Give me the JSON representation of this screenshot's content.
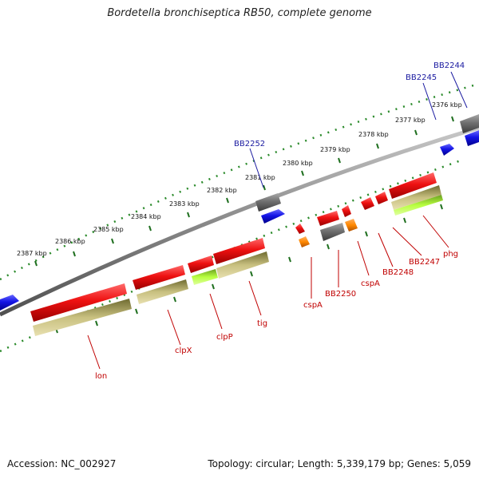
{
  "title": "Bordetella bronchiseptica RB50, complete genome",
  "footer": {
    "accession": "Accession: NC_002927",
    "topology": "Topology: circular; Length: 5,339,179 bp; Genes: 5,059"
  },
  "colors": {
    "forward_cds": "#e81010",
    "reverse_cds": "#1010e0",
    "pseudo_gray": "#707070",
    "trna_orange": "#ff8c00",
    "highlight_green": "#a8f030",
    "khaki": "#b8b070",
    "backbone": "#8a8a8a",
    "tick_green": "#2a7a2a",
    "label_blue": "#1a1aa0",
    "label_red": "#c00000"
  },
  "kbp_labels": [
    "2376 kbp",
    "2377 kbp",
    "2378 kbp",
    "2379 kbp",
    "2380 kbp",
    "2381 kbp",
    "2382 kbp",
    "2383 kbp",
    "2384 kbp",
    "2385 kbp",
    "2386 kbp",
    "2387 kbp"
  ],
  "genes_top": [
    "BB2244",
    "BB2245",
    "BB2252"
  ],
  "genes_bottom": [
    "lon",
    "clpX",
    "clpP",
    "tig",
    "cspA",
    "BB2250",
    "cspA",
    "BB2248",
    "BB2247",
    "phg"
  ]
}
